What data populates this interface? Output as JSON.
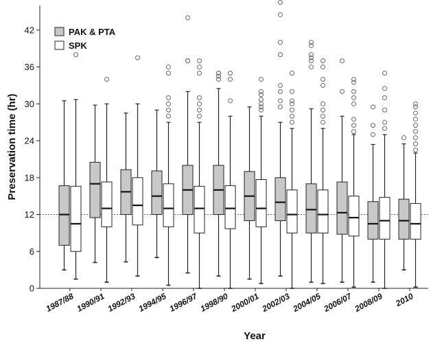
{
  "chart_data": {
    "type": "box",
    "xlabel": "Year",
    "ylabel": "Preservation time (hr)",
    "ylim": [
      0,
      46
    ],
    "yticks": [
      0,
      6,
      12,
      18,
      24,
      30,
      36,
      42
    ],
    "x_tick_labels": [
      "1987/88",
      "1990/91",
      "1992/93",
      "1994/95",
      "1996/97",
      "1998/90",
      "2000/01",
      "2002/03",
      "2004/05",
      "2006/07",
      "2008/09",
      "2010"
    ],
    "reference_line": 12,
    "legend": {
      "position": "top-left"
    },
    "colors": {
      "PAK & PTA": "#c8c8c8",
      "SPK": "#ffffff"
    },
    "series": [
      {
        "name": "PAK & PTA",
        "boxes": [
          {
            "min": 3,
            "q1": 7,
            "median": 12,
            "q3": 16.7,
            "max": 30.5,
            "outliers": []
          },
          {
            "min": 4.2,
            "q1": 11.5,
            "median": 17,
            "q3": 20.5,
            "max": 29.8,
            "outliers": []
          },
          {
            "min": 4.3,
            "q1": 12,
            "median": 15.7,
            "q3": 19.3,
            "max": 28.5,
            "outliers": []
          },
          {
            "min": 5,
            "q1": 12,
            "median": 15,
            "q3": 19.1,
            "max": 29,
            "outliers": []
          },
          {
            "min": 2.5,
            "q1": 12,
            "median": 16,
            "q3": 20,
            "max": 32,
            "outliers": [
              37,
              37,
              44
            ]
          },
          {
            "min": 2,
            "q1": 12,
            "median": 16,
            "q3": 20,
            "max": 32.5,
            "outliers": [
              34,
              34.5,
              35,
              35
            ]
          },
          {
            "min": 1.5,
            "q1": 11,
            "median": 15,
            "q3": 19,
            "max": 29.5,
            "outliers": []
          },
          {
            "min": 2,
            "q1": 11,
            "median": 14,
            "q3": 18,
            "max": 27,
            "outliers": [
              29.5,
              30.5,
              32,
              33,
              38,
              40,
              44.5,
              46.5
            ]
          },
          {
            "min": 1,
            "q1": 9,
            "median": 12.8,
            "q3": 17,
            "max": 29.2,
            "outliers": [
              36,
              37,
              37.5,
              38,
              39.5,
              40
            ]
          },
          {
            "min": 1,
            "q1": 8.8,
            "median": 12.3,
            "q3": 17.3,
            "max": 28,
            "outliers": [
              32,
              37
            ]
          },
          {
            "min": 1,
            "q1": 8,
            "median": 10.5,
            "q3": 14.1,
            "max": 23.4,
            "outliers": [
              25,
              26.5,
              29.5
            ]
          },
          {
            "min": 3,
            "q1": 8,
            "median": 11,
            "q3": 14.5,
            "max": 23.5,
            "outliers": [
              24.5
            ]
          }
        ]
      },
      {
        "name": "SPK",
        "boxes": [
          {
            "min": 1.5,
            "q1": 6,
            "median": 10.5,
            "q3": 16.6,
            "max": 30.7,
            "outliers": [
              38
            ]
          },
          {
            "min": 1,
            "q1": 10,
            "median": 13,
            "q3": 17.3,
            "max": 30,
            "outliers": [
              34
            ]
          },
          {
            "min": 2,
            "q1": 10.3,
            "median": 13.5,
            "q3": 18,
            "max": 30,
            "outliers": [
              37.5
            ]
          },
          {
            "min": 0.5,
            "q1": 10,
            "median": 13,
            "q3": 17,
            "max": 27,
            "outliers": [
              28,
              29,
              30,
              31,
              35,
              36
            ]
          },
          {
            "min": 0,
            "q1": 9,
            "median": 13,
            "q3": 16.6,
            "max": 27,
            "outliers": [
              28,
              29,
              30,
              31,
              35,
              36,
              37
            ]
          },
          {
            "min": 0,
            "q1": 9.7,
            "median": 13,
            "q3": 16.7,
            "max": 28,
            "outliers": [
              30.5,
              34,
              35
            ]
          },
          {
            "min": 0.8,
            "q1": 10,
            "median": 13,
            "q3": 17.7,
            "max": 28,
            "outliers": [
              29,
              29.5,
              30,
              30.7,
              31.5,
              32,
              34
            ]
          },
          {
            "min": 0,
            "q1": 9,
            "median": 12,
            "q3": 16,
            "max": 26,
            "outliers": [
              27,
              28,
              29,
              30,
              30.5,
              32,
              35
            ]
          },
          {
            "min": 0.8,
            "q1": 9,
            "median": 12,
            "q3": 16,
            "max": 26,
            "outliers": [
              27,
              28,
              29,
              30,
              33,
              34,
              36,
              37
            ]
          },
          {
            "min": 0.2,
            "q1": 8.5,
            "median": 11.5,
            "q3": 15,
            "max": 25,
            "outliers": [
              25.5,
              26.5,
              27.5,
              30,
              31,
              32,
              33.5,
              34
            ]
          },
          {
            "min": 0,
            "q1": 8,
            "median": 11,
            "q3": 14.8,
            "max": 25,
            "outliers": [
              26,
              27,
              29,
              31,
              32.5,
              35
            ]
          },
          {
            "min": 0.2,
            "q1": 8,
            "median": 10.5,
            "q3": 13.8,
            "max": 22,
            "outliers": [
              22.5,
              23.5,
              24.5,
              25.5,
              26.5,
              27.5,
              28.5,
              29.5,
              30
            ]
          }
        ]
      }
    ]
  }
}
